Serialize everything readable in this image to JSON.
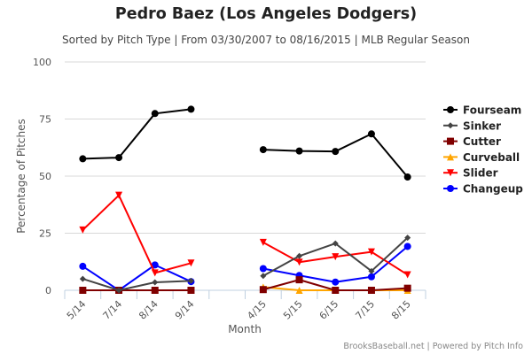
{
  "chart_data": {
    "type": "line",
    "title": "Pedro Baez (Los Angeles Dodgers)",
    "subtitle": "Sorted by Pitch Type | From 03/30/2007 to 08/16/2015 | MLB Regular Season",
    "xlabel": "Month",
    "ylabel": "Percentage of Pitches",
    "ylim": [
      0,
      100
    ],
    "yticks": [
      0,
      25,
      50,
      75,
      100
    ],
    "grid": true,
    "legend_position": "right",
    "categories": [
      "5/14",
      "7/14",
      "8/14",
      "9/14",
      "",
      "4/15",
      "5/15",
      "6/15",
      "7/15",
      "8/15"
    ],
    "series": [
      {
        "name": "Fourseam",
        "color": "#000000",
        "marker": "circle",
        "values": [
          57.6,
          58.1,
          77.4,
          79.3,
          null,
          61.6,
          61.0,
          60.8,
          68.5,
          49.6
        ]
      },
      {
        "name": "Sinker",
        "color": "#444444",
        "marker": "diamond",
        "values": [
          5.0,
          0.0,
          3.5,
          4.1,
          null,
          6.3,
          15.0,
          20.5,
          8.4,
          23.0
        ]
      },
      {
        "name": "Cutter",
        "color": "#800000",
        "marker": "square",
        "values": [
          0.0,
          0.0,
          0.0,
          0.0,
          null,
          0.3,
          4.6,
          0.0,
          0.0,
          0.9
        ]
      },
      {
        "name": "Curveball",
        "color": "#FFA500",
        "marker": "triangle",
        "values": [
          0.0,
          0.0,
          0.0,
          0.0,
          null,
          1.4,
          0.0,
          0.0,
          0.0,
          0.0
        ]
      },
      {
        "name": "Slider",
        "color": "#FF0000",
        "marker": "triangle-down",
        "values": [
          26.4,
          41.6,
          7.6,
          11.9,
          null,
          21.0,
          12.3,
          14.7,
          16.8,
          6.8
        ]
      },
      {
        "name": "Changeup",
        "color": "#0000FF",
        "marker": "circle",
        "values": [
          10.5,
          0.0,
          11.1,
          3.8,
          null,
          9.5,
          6.5,
          3.6,
          5.9,
          19.2
        ]
      }
    ]
  },
  "credits": "BrooksBaseball.net | Powered by Pitch Info"
}
